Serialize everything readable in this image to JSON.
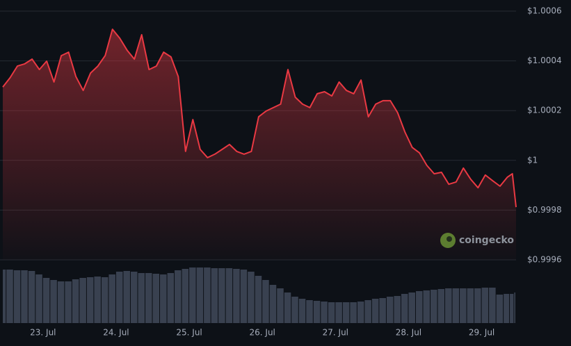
{
  "chart_data": {
    "type": "area",
    "color": "#ea3943",
    "volume_color": "#394150",
    "watermark": "coingecko",
    "grid": true,
    "xlim": [
      22.45,
      29.47
    ],
    "xticks": [
      {
        "value": 23,
        "label": "23. Jul"
      },
      {
        "value": 24,
        "label": "24. Jul"
      },
      {
        "value": 25,
        "label": "25. Jul"
      },
      {
        "value": 26,
        "label": "26. Jul"
      },
      {
        "value": 27,
        "label": "27. Jul"
      },
      {
        "value": 28,
        "label": "28. Jul"
      },
      {
        "value": 29,
        "label": "29. Jul"
      }
    ],
    "ylim": [
      0.9996,
      1.0006
    ],
    "yticks": [
      {
        "value": 0.9996,
        "label": "$0.9996"
      },
      {
        "value": 0.9998,
        "label": "$0.9998"
      },
      {
        "value": 1,
        "label": "$1"
      },
      {
        "value": 1.0002,
        "label": "$1.0002"
      },
      {
        "value": 1.0004,
        "label": "$1.0004"
      },
      {
        "value": 1.0006,
        "label": "$1.0006"
      }
    ],
    "x": [
      22.45,
      22.55,
      22.65,
      22.75,
      22.85,
      22.95,
      23.05,
      23.15,
      23.25,
      23.35,
      23.45,
      23.55,
      23.65,
      23.75,
      23.85,
      23.95,
      24.05,
      24.15,
      24.25,
      24.35,
      24.45,
      24.55,
      24.65,
      24.75,
      24.85,
      24.95,
      25.05,
      25.15,
      25.25,
      25.35,
      25.45,
      25.55,
      25.65,
      25.75,
      25.85,
      25.95,
      26.05,
      26.15,
      26.25,
      26.35,
      26.45,
      26.55,
      26.65,
      26.75,
      26.85,
      26.95,
      27.05,
      27.15,
      27.25,
      27.35,
      27.45,
      27.55,
      27.65,
      27.75,
      27.85,
      27.95,
      28.05,
      28.15,
      28.25,
      28.35,
      28.45,
      28.55,
      28.65,
      28.75,
      28.85,
      28.95,
      29.05,
      29.15,
      29.25,
      29.35,
      29.42,
      29.47
    ],
    "values": [
      1.000295,
      1.000332,
      1.000379,
      1.000388,
      1.000407,
      1.000365,
      1.000399,
      1.000315,
      1.000421,
      1.000435,
      1.000337,
      1.000281,
      1.000351,
      1.000379,
      1.000421,
      1.000527,
      1.000491,
      1.000443,
      1.000407,
      1.000505,
      1.000365,
      1.000379,
      1.000435,
      1.000416,
      1.000337,
      1.000036,
      1.000164,
      1.000044,
      1.000011,
      1.000025,
      1.000044,
      1.000064,
      1.000036,
      1.000025,
      1.000036,
      1.000175,
      1.000198,
      1.000212,
      1.000226,
      1.000365,
      1.000254,
      1.000226,
      1.000212,
      1.000268,
      1.000276,
      1.000259,
      1.000315,
      1.000281,
      1.000268,
      1.000323,
      1.000175,
      1.000226,
      1.00024,
      1.00024,
      1.000192,
      1.000114,
      1.000052,
      1.00003,
      0.99998,
      0.999946,
      0.999952,
      0.999904,
      0.999913,
      0.999969,
      0.999924,
      0.99989,
      0.999941,
      0.999918,
      0.999896,
      0.999932,
      0.999946,
      0.999812
    ],
    "volume": [
      77,
      77,
      76,
      76,
      75,
      70,
      65,
      62,
      60,
      60,
      63,
      65,
      66,
      67,
      66,
      70,
      74,
      75,
      74,
      72,
      72,
      71,
      70,
      72,
      76,
      78,
      80,
      80,
      80,
      79,
      79,
      79,
      78,
      77,
      74,
      68,
      62,
      55,
      50,
      44,
      38,
      35,
      33,
      32,
      31,
      30,
      30,
      30,
      30,
      31,
      33,
      35,
      36,
      38,
      39,
      42,
      44,
      46,
      47,
      48,
      49,
      50,
      50,
      50,
      50,
      50,
      51,
      51,
      41,
      42,
      42,
      44
    ]
  }
}
